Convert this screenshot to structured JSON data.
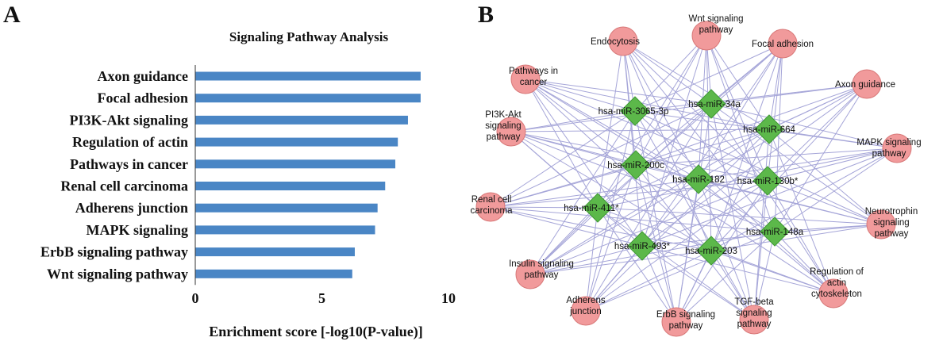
{
  "panels": {
    "a_letter": "A",
    "b_letter": "B"
  },
  "chart_data": {
    "type": "bar",
    "orientation": "horizontal",
    "title": "Signaling Pathway Analysis",
    "xlabel": "Enrichment  score [-log10(P-value)]",
    "ylabel": "",
    "xlim": [
      0,
      10
    ],
    "xticks": [
      "0",
      "5",
      "10"
    ],
    "categories": [
      "Axon guidance",
      "Focal adhesion",
      "PI3K-Akt signaling",
      "Regulation of actin",
      "Pathways in cancer",
      "Renal cell carcinoma",
      "Adherens junction",
      "MAPK signaling",
      "ErbB signaling pathway",
      "Wnt signaling pathway"
    ],
    "values": [
      8.9,
      8.9,
      8.4,
      8.0,
      7.9,
      7.5,
      7.2,
      7.1,
      6.3,
      6.2
    ],
    "bar_color": "#4a86c5",
    "grid": false
  },
  "network": {
    "edge_color": "#a5a5d8",
    "pathway_color": "#f19a9b",
    "pathway_stroke": "#d87878",
    "mirna_color": "#5cb84a",
    "mirna_stroke": "#3f9a34",
    "pathways": [
      {
        "id": "endocytosis",
        "label": [
          "Endocytosis"
        ]
      },
      {
        "id": "wnt",
        "label": [
          "Wnt signaling",
          "pathway"
        ]
      },
      {
        "id": "focal",
        "label": [
          "Focal adhesion"
        ]
      },
      {
        "id": "axon",
        "label": [
          "Axon guidance"
        ]
      },
      {
        "id": "cancer",
        "label": [
          "Pathways in",
          "cancer"
        ]
      },
      {
        "id": "pi3k",
        "label": [
          "PI3K-Akt",
          "signaling",
          "pathway"
        ]
      },
      {
        "id": "mapk",
        "label": [
          "MAPK signaling",
          "pathway"
        ]
      },
      {
        "id": "renal",
        "label": [
          "Renal cell",
          "carcinoma"
        ]
      },
      {
        "id": "neuro",
        "label": [
          "Neurotrophin",
          "signaling",
          "pathway"
        ]
      },
      {
        "id": "insulin",
        "label": [
          "Insulin signaling",
          "pathway"
        ]
      },
      {
        "id": "regulation",
        "label": [
          "Regulation of",
          "actin",
          "cytoskeleton"
        ]
      },
      {
        "id": "adherens",
        "label": [
          "Adherens",
          "junction"
        ]
      },
      {
        "id": "erbb",
        "label": [
          "ErbB signaling",
          "pathway"
        ]
      },
      {
        "id": "tgf",
        "label": [
          "TGF-beta",
          "signaling",
          "pathway"
        ]
      }
    ],
    "mirnas": [
      {
        "id": "m3065",
        "label": "hsa-miR-3065-3p"
      },
      {
        "id": "m34a",
        "label": "hsa-miR-34a"
      },
      {
        "id": "m664",
        "label": "hsa-miR-664"
      },
      {
        "id": "m200c",
        "label": "hsa-miR-200c"
      },
      {
        "id": "m182",
        "label": "hsa-miR-182"
      },
      {
        "id": "m130b",
        "label": "hsa-miR-130b*"
      },
      {
        "id": "m411",
        "label": "hsa-miR-411*"
      },
      {
        "id": "m148a",
        "label": "hsa-miR-148a"
      },
      {
        "id": "m493",
        "label": "hsa-miR-493*"
      },
      {
        "id": "m203",
        "label": "hsa-miR-203"
      }
    ]
  }
}
